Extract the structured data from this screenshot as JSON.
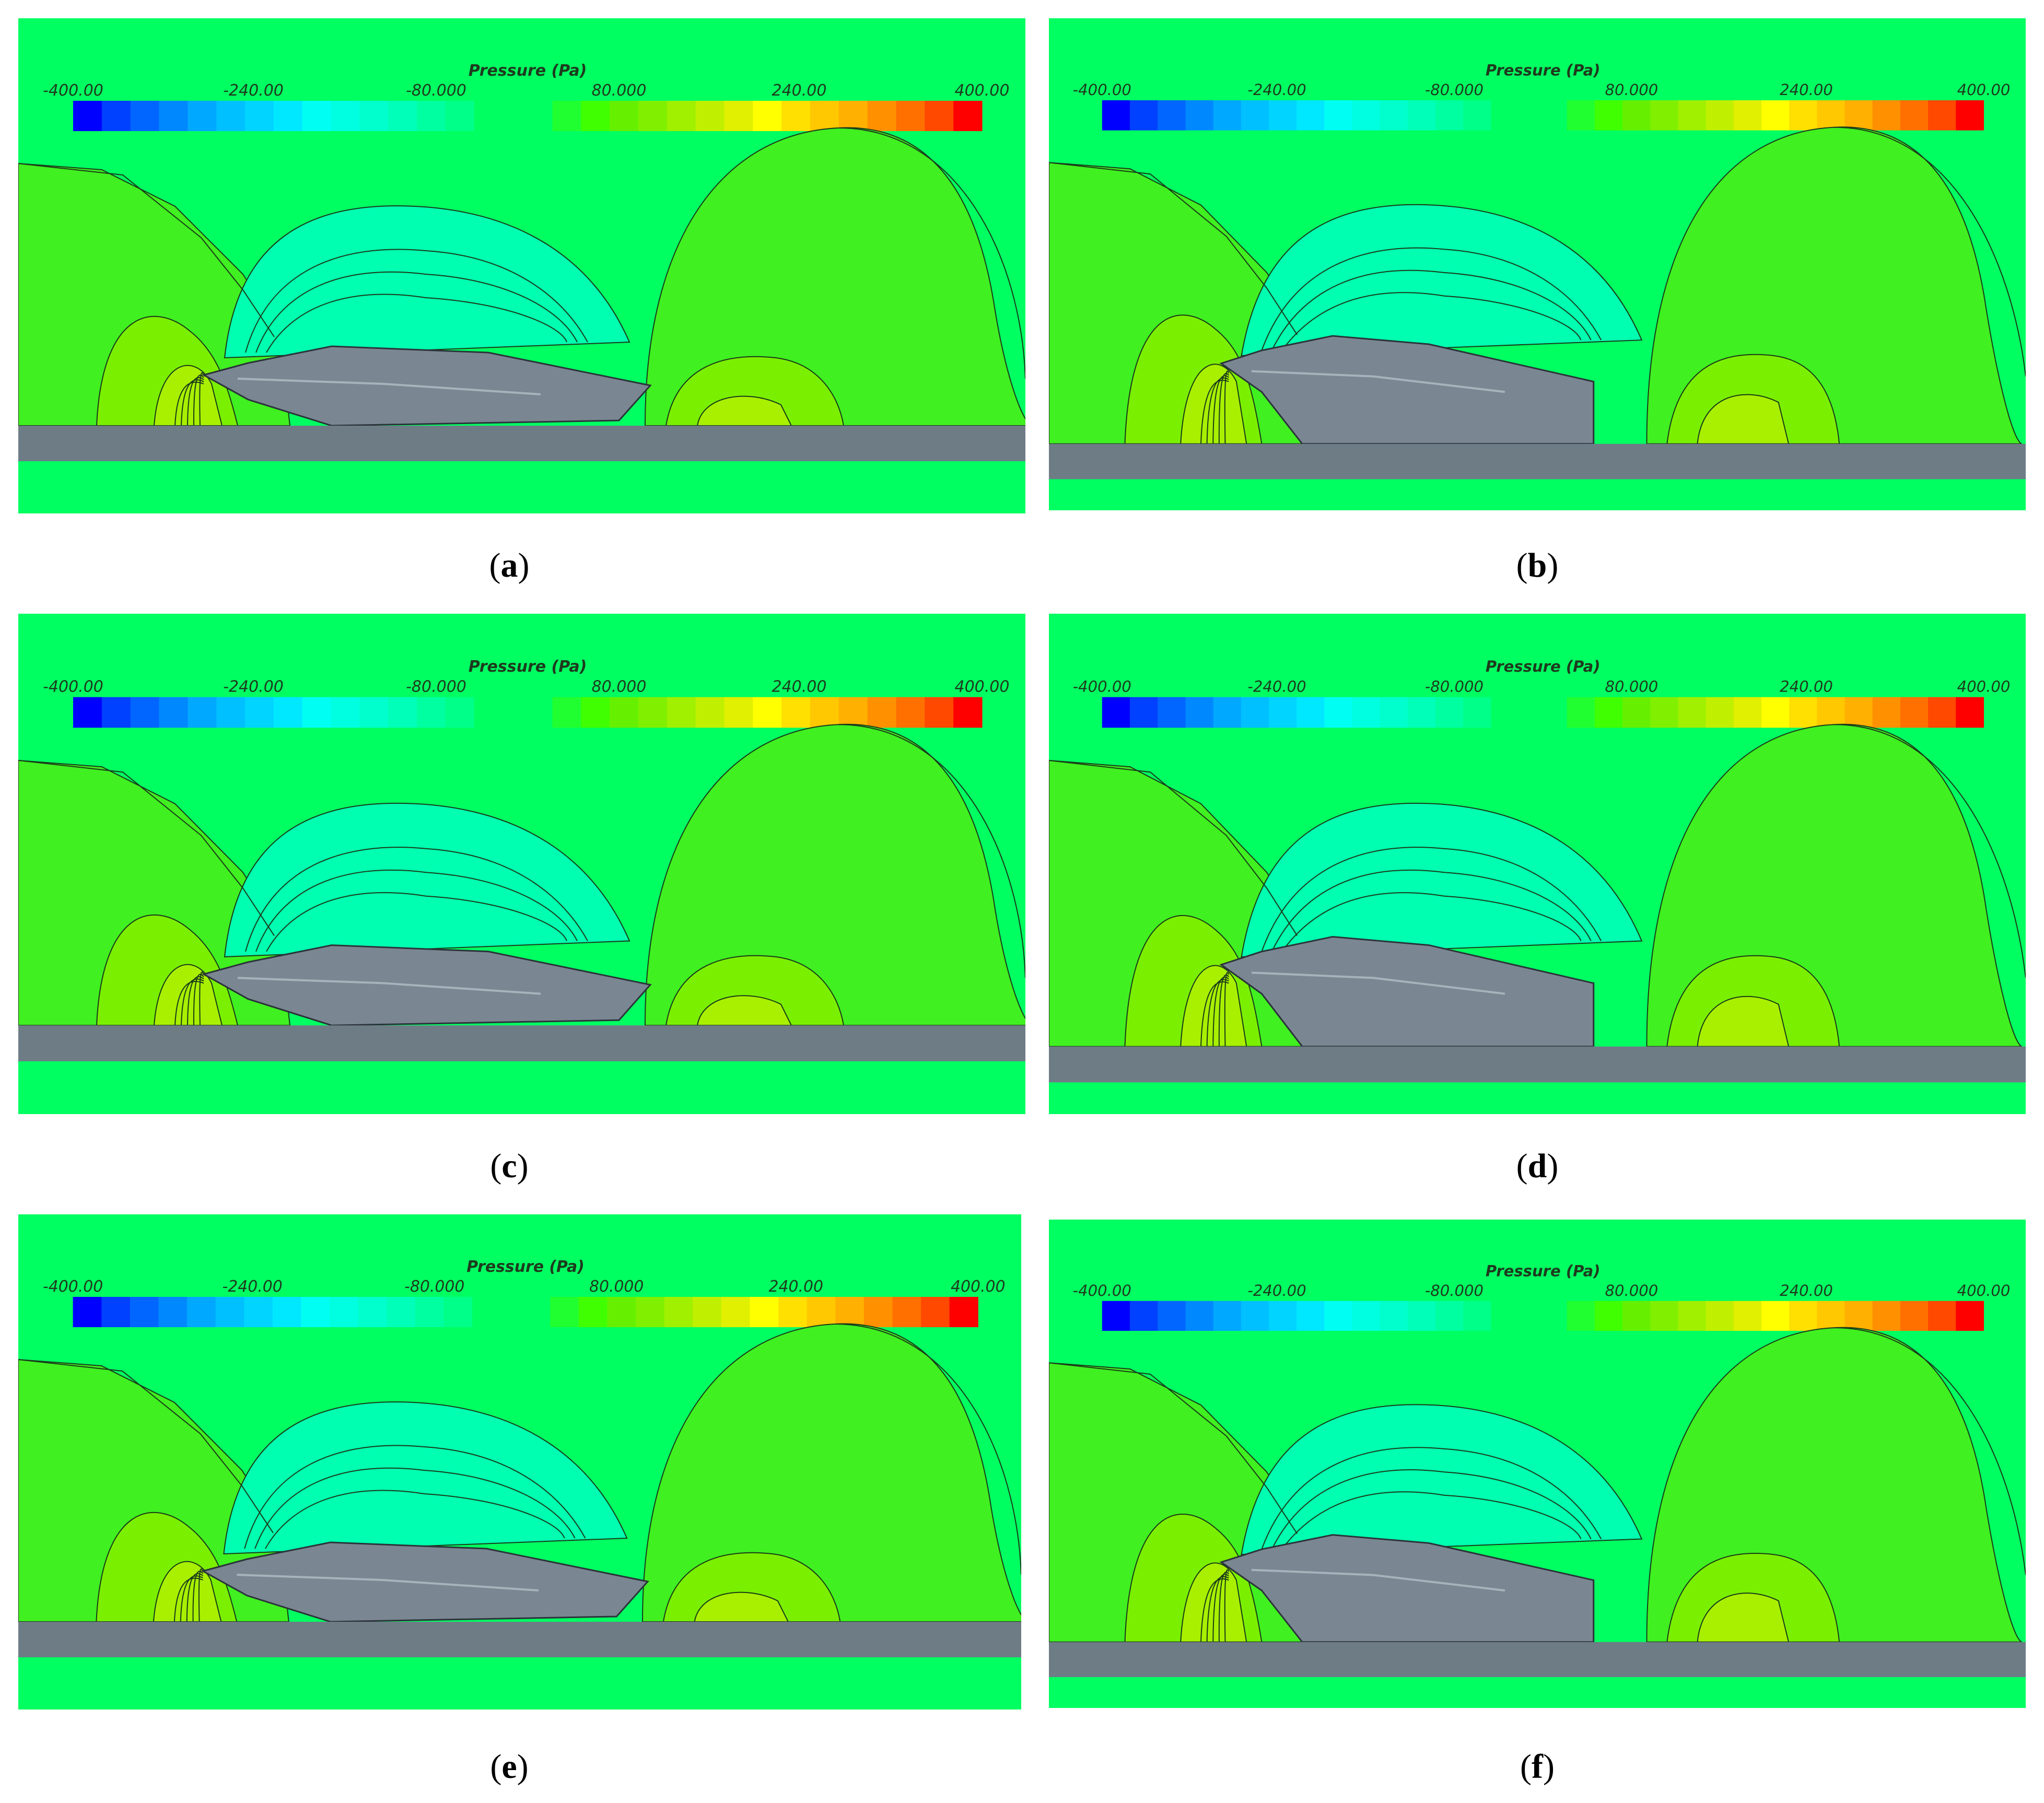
{
  "colorbar": {
    "title": "Pressure (Pa)",
    "ticks": [
      "-400.00",
      "-240.00",
      "-80.000",
      "80.000",
      "240.00",
      "400.00"
    ],
    "colors": [
      "#0000ff",
      "#0040ff",
      "#0066ff",
      "#0088ff",
      "#00a8ff",
      "#00c0ff",
      "#00d4ff",
      "#00e8ff",
      "#00fff2",
      "#00ffe0",
      "#00ffcc",
      "#00ffb8",
      "#00ffa0",
      "#00ff88",
      "#00ff61",
      "#00ff61",
      "#20ff30",
      "#40ff00",
      "#66f000",
      "#80f000",
      "#a0f000",
      "#c0f000",
      "#e0f000",
      "#ffff00",
      "#ffe000",
      "#ffc800",
      "#ffb000",
      "#ff9000",
      "#ff7000",
      "#ff4800",
      "#ff0000"
    ]
  },
  "colors": {
    "background": "#00ff61",
    "ground": "#6e7c86",
    "hull": "#7a8691",
    "suction": "#00ffb0",
    "pressure_outer": "#40f020",
    "pressure_mid": "#7af000",
    "pressure_inner": "#a8f000"
  },
  "panels": [
    {
      "id": "a",
      "caption": "a",
      "variant": "short-stern"
    },
    {
      "id": "b",
      "caption": "b",
      "variant": "cut-stern"
    },
    {
      "id": "c",
      "caption": "c",
      "variant": "short-stern"
    },
    {
      "id": "d",
      "caption": "d",
      "variant": "cut-stern"
    },
    {
      "id": "e",
      "caption": "e",
      "variant": "short-stern"
    },
    {
      "id": "f",
      "caption": "f",
      "variant": "cut-stern"
    }
  ]
}
